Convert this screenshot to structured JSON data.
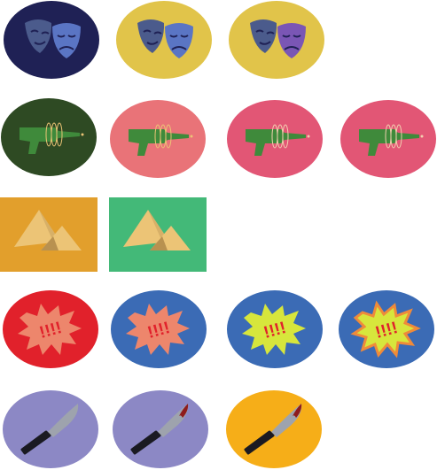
{
  "colors": {
    "navy": "#1f2155",
    "mustard": "#e1c44a",
    "forest": "#2e4a23",
    "salmon": "#e97378",
    "rose": "#e25675",
    "orange": "#e29f2c",
    "emerald": "#43b978",
    "red": "#e1212b",
    "blue": "#3b6bb5",
    "lavender": "#8c88c5",
    "amber": "#f6ae18",
    "mask_back": "#4b5b8c",
    "mask_front_blue": "#5a75c4",
    "mask_front_purple": "#7a56b5",
    "gun_green": "#3f8a3b",
    "sand_light": "#ecc476",
    "sand_dark": "#b89150",
    "burst_salmon": "#ed866c",
    "burst_lime": "#d7e63c",
    "burst_orange_rim": "#ef8a3a",
    "knife_blade": "#9ea3ad",
    "knife_handle": "#1a1a22",
    "blood": "#8e1c1c"
  },
  "icons": [
    {
      "name": "theater-masks-icon-navy"
    },
    {
      "name": "theater-masks-icon-mustard"
    },
    {
      "name": "theater-masks-icon-mustard-purple"
    },
    {
      "name": "ray-gun-icon-forest"
    },
    {
      "name": "ray-gun-icon-salmon"
    },
    {
      "name": "ray-gun-icon-rose"
    },
    {
      "name": "ray-gun-icon-rose-2"
    },
    {
      "name": "pyramids-icon-orange"
    },
    {
      "name": "pyramids-icon-green"
    },
    {
      "name": "exclamation-burst-icon-red"
    },
    {
      "name": "exclamation-burst-icon-blue"
    },
    {
      "name": "exclamation-burst-icon-blue-lime"
    },
    {
      "name": "exclamation-burst-icon-blue-lime-rim"
    },
    {
      "name": "knife-icon-lavender"
    },
    {
      "name": "knife-icon-lavender-bloody"
    },
    {
      "name": "knife-icon-amber-bloody"
    }
  ],
  "burst_text": "!!!!"
}
